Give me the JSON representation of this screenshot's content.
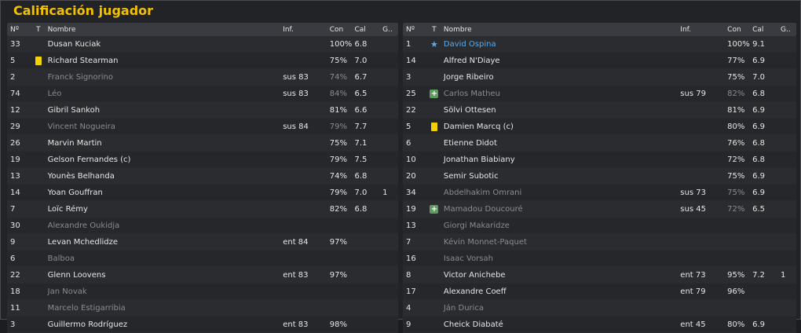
{
  "title": "Calificación jugador",
  "headers": {
    "num": "Nº",
    "t": "T",
    "name": "Nombre",
    "inf": "Inf.",
    "con": "Con",
    "cal": "Cal",
    "g": "G.."
  },
  "left": [
    {
      "num": "33",
      "icon": "",
      "name": "Dusan Kuciak",
      "inf": "",
      "con": "100%",
      "cal": "6.8",
      "g": "",
      "dim": false,
      "hl": false
    },
    {
      "num": "5",
      "icon": "yellow-card",
      "name": "Richard Stearman",
      "inf": "",
      "con": "75%",
      "cal": "7.0",
      "g": "",
      "dim": false,
      "hl": false
    },
    {
      "num": "2",
      "icon": "",
      "name": "Franck Signorino",
      "inf": "sus 83",
      "con": "74%",
      "cal": "6.7",
      "g": "",
      "dim": true,
      "hl": false
    },
    {
      "num": "74",
      "icon": "",
      "name": "Léo",
      "inf": "sus 83",
      "con": "84%",
      "cal": "6.5",
      "g": "",
      "dim": true,
      "hl": false
    },
    {
      "num": "12",
      "icon": "",
      "name": "Gibril Sankoh",
      "inf": "",
      "con": "81%",
      "cal": "6.6",
      "g": "",
      "dim": false,
      "hl": false
    },
    {
      "num": "29",
      "icon": "",
      "name": "Vincent Nogueira",
      "inf": "sus 84",
      "con": "79%",
      "cal": "7.7",
      "g": "",
      "dim": true,
      "hl": false
    },
    {
      "num": "26",
      "icon": "",
      "name": "Marvin Martin",
      "inf": "",
      "con": "75%",
      "cal": "7.1",
      "g": "",
      "dim": false,
      "hl": false
    },
    {
      "num": "19",
      "icon": "",
      "name": "Gelson Fernandes (c)",
      "inf": "",
      "con": "79%",
      "cal": "7.5",
      "g": "",
      "dim": false,
      "hl": false
    },
    {
      "num": "13",
      "icon": "",
      "name": "Younès Belhanda",
      "inf": "",
      "con": "74%",
      "cal": "6.8",
      "g": "",
      "dim": false,
      "hl": false
    },
    {
      "num": "14",
      "icon": "",
      "name": "Yoan Gouffran",
      "inf": "",
      "con": "79%",
      "cal": "7.0",
      "g": "1",
      "dim": false,
      "hl": false
    },
    {
      "num": "7",
      "icon": "",
      "name": "Loïc Rémy",
      "inf": "",
      "con": "82%",
      "cal": "6.8",
      "g": "",
      "dim": false,
      "hl": false
    },
    {
      "num": "30",
      "icon": "",
      "name": "Alexandre Oukidja",
      "inf": "",
      "con": "",
      "cal": "",
      "g": "",
      "dim": true,
      "hl": false
    },
    {
      "num": "9",
      "icon": "",
      "name": "Levan Mchedlidze",
      "inf": "ent 84",
      "con": "97%",
      "cal": "",
      "g": "",
      "dim": false,
      "hl": false
    },
    {
      "num": "6",
      "icon": "",
      "name": "Balboa",
      "inf": "",
      "con": "",
      "cal": "",
      "g": "",
      "dim": true,
      "hl": false
    },
    {
      "num": "22",
      "icon": "",
      "name": "Glenn Loovens",
      "inf": "ent 83",
      "con": "97%",
      "cal": "",
      "g": "",
      "dim": false,
      "hl": false
    },
    {
      "num": "18",
      "icon": "",
      "name": "Jan Novak",
      "inf": "",
      "con": "",
      "cal": "",
      "g": "",
      "dim": true,
      "hl": false
    },
    {
      "num": "11",
      "icon": "",
      "name": "Marcelo Estigarribia",
      "inf": "",
      "con": "",
      "cal": "",
      "g": "",
      "dim": true,
      "hl": false
    },
    {
      "num": "3",
      "icon": "",
      "name": "Guillermo Rodríguez",
      "inf": "ent 83",
      "con": "98%",
      "cal": "",
      "g": "",
      "dim": false,
      "hl": false
    }
  ],
  "right": [
    {
      "num": "1",
      "icon": "star",
      "name": "David Ospina",
      "inf": "",
      "con": "100%",
      "cal": "9.1",
      "g": "",
      "dim": false,
      "hl": true
    },
    {
      "num": "14",
      "icon": "",
      "name": "Alfred N'Diaye",
      "inf": "",
      "con": "77%",
      "cal": "6.9",
      "g": "",
      "dim": false,
      "hl": false
    },
    {
      "num": "3",
      "icon": "",
      "name": "Jorge Ribeiro",
      "inf": "",
      "con": "75%",
      "cal": "7.0",
      "g": "",
      "dim": false,
      "hl": false
    },
    {
      "num": "25",
      "icon": "plus",
      "name": "Carlos Matheu",
      "inf": "sus 79",
      "con": "82%",
      "cal": "6.8",
      "g": "",
      "dim": true,
      "hl": false
    },
    {
      "num": "22",
      "icon": "",
      "name": "Sölvi Ottesen",
      "inf": "",
      "con": "81%",
      "cal": "6.9",
      "g": "",
      "dim": false,
      "hl": false
    },
    {
      "num": "5",
      "icon": "yellow-card",
      "name": "Damien Marcq (c)",
      "inf": "",
      "con": "80%",
      "cal": "6.9",
      "g": "",
      "dim": false,
      "hl": false
    },
    {
      "num": "6",
      "icon": "",
      "name": "Etienne Didot",
      "inf": "",
      "con": "76%",
      "cal": "6.8",
      "g": "",
      "dim": false,
      "hl": false
    },
    {
      "num": "10",
      "icon": "",
      "name": "Jonathan Biabiany",
      "inf": "",
      "con": "72%",
      "cal": "6.8",
      "g": "",
      "dim": false,
      "hl": false
    },
    {
      "num": "20",
      "icon": "",
      "name": "Semir Subotic",
      "inf": "",
      "con": "75%",
      "cal": "6.9",
      "g": "",
      "dim": false,
      "hl": false
    },
    {
      "num": "34",
      "icon": "",
      "name": "Abdelhakim Omrani",
      "inf": "sus 73",
      "con": "75%",
      "cal": "6.9",
      "g": "",
      "dim": true,
      "hl": false
    },
    {
      "num": "19",
      "icon": "plus",
      "name": "Mamadou Doucouré",
      "inf": "sus 45",
      "con": "72%",
      "cal": "6.5",
      "g": "",
      "dim": true,
      "hl": false
    },
    {
      "num": "13",
      "icon": "",
      "name": "Giorgi Makaridze",
      "inf": "",
      "con": "",
      "cal": "",
      "g": "",
      "dim": true,
      "hl": false
    },
    {
      "num": "7",
      "icon": "",
      "name": "Kévin Monnet-Paquet",
      "inf": "",
      "con": "",
      "cal": "",
      "g": "",
      "dim": true,
      "hl": false
    },
    {
      "num": "16",
      "icon": "",
      "name": "Isaac Vorsah",
      "inf": "",
      "con": "",
      "cal": "",
      "g": "",
      "dim": true,
      "hl": false
    },
    {
      "num": "8",
      "icon": "",
      "name": "Victor Anichebe",
      "inf": "ent 73",
      "con": "95%",
      "cal": "7.2",
      "g": "1",
      "dim": false,
      "hl": false
    },
    {
      "num": "17",
      "icon": "",
      "name": "Alexandre Coeff",
      "inf": "ent 79",
      "con": "96%",
      "cal": "",
      "g": "",
      "dim": false,
      "hl": false
    },
    {
      "num": "4",
      "icon": "",
      "name": "Ján Ďurica",
      "inf": "",
      "con": "",
      "cal": "",
      "g": "",
      "dim": true,
      "hl": false
    },
    {
      "num": "9",
      "icon": "",
      "name": "Cheick Diabaté",
      "inf": "ent 45",
      "con": "80%",
      "cal": "6.9",
      "g": "",
      "dim": false,
      "hl": false
    }
  ]
}
